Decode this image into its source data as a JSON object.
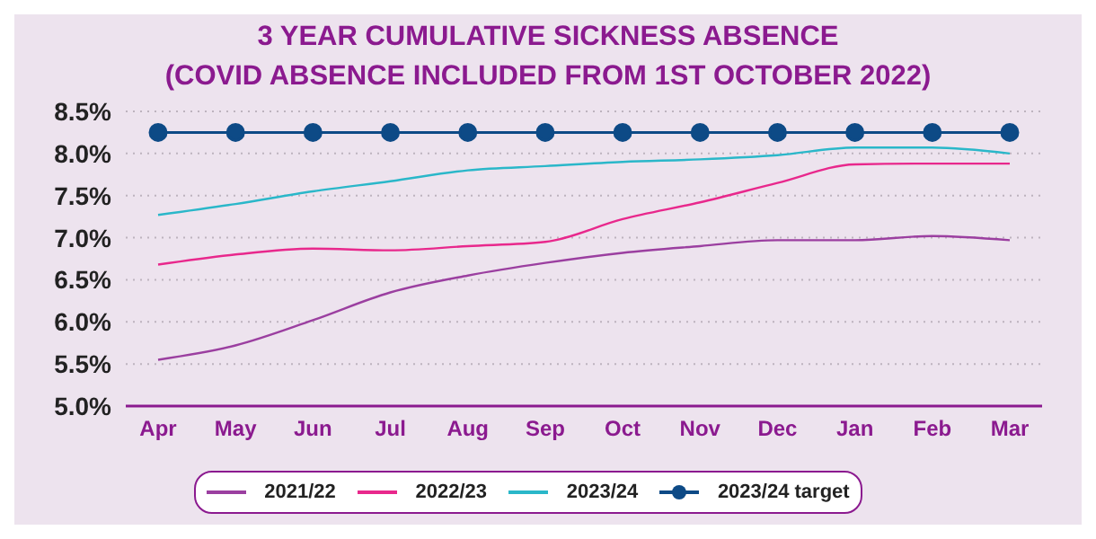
{
  "chart_data": {
    "type": "line",
    "title": "3 YEAR CUMULATIVE SICKNESS ABSENCE",
    "subtitle": "(COVID ABSENCE INCLUDED FROM 1ST OCTOBER 2022)",
    "categories": [
      "Apr",
      "May",
      "Jun",
      "Jul",
      "Aug",
      "Sep",
      "Oct",
      "Nov",
      "Dec",
      "Jan",
      "Feb",
      "Mar"
    ],
    "series": [
      {
        "name": "2021/22",
        "color": "#9b3fa0",
        "marker": "none",
        "values": [
          5.55,
          5.72,
          6.02,
          6.35,
          6.55,
          6.7,
          6.82,
          6.9,
          6.97,
          6.97,
          7.02,
          6.97
        ]
      },
      {
        "name": "2022/23",
        "color": "#e8288c",
        "marker": "none",
        "values": [
          6.68,
          6.8,
          6.87,
          6.85,
          6.9,
          6.95,
          7.22,
          7.42,
          7.65,
          7.87,
          7.88,
          7.88
        ]
      },
      {
        "name": "2023/24",
        "color": "#2ab7c9",
        "marker": "none",
        "values": [
          7.27,
          7.4,
          7.55,
          7.67,
          7.8,
          7.85,
          7.9,
          7.93,
          7.98,
          8.07,
          8.07,
          8.0
        ]
      },
      {
        "name": "2023/24 target",
        "color": "#0d4a86",
        "marker": "circle",
        "values": [
          8.25,
          8.25,
          8.25,
          8.25,
          8.25,
          8.25,
          8.25,
          8.25,
          8.25,
          8.25,
          8.25,
          8.25
        ]
      }
    ],
    "ylim": [
      5.0,
      8.5
    ],
    "yticks": [
      {
        "value": 5.0,
        "label": "5.0%"
      },
      {
        "value": 5.5,
        "label": "5.5%"
      },
      {
        "value": 6.0,
        "label": "6.0%"
      },
      {
        "value": 6.5,
        "label": "6.5%"
      },
      {
        "value": 7.0,
        "label": "7.0%"
      },
      {
        "value": 7.5,
        "label": "7.5%"
      },
      {
        "value": 8.0,
        "label": "8.0%"
      },
      {
        "value": 8.5,
        "label": "8.5%"
      }
    ],
    "grid": "y",
    "legend": "bottom",
    "line_style": "solid"
  }
}
